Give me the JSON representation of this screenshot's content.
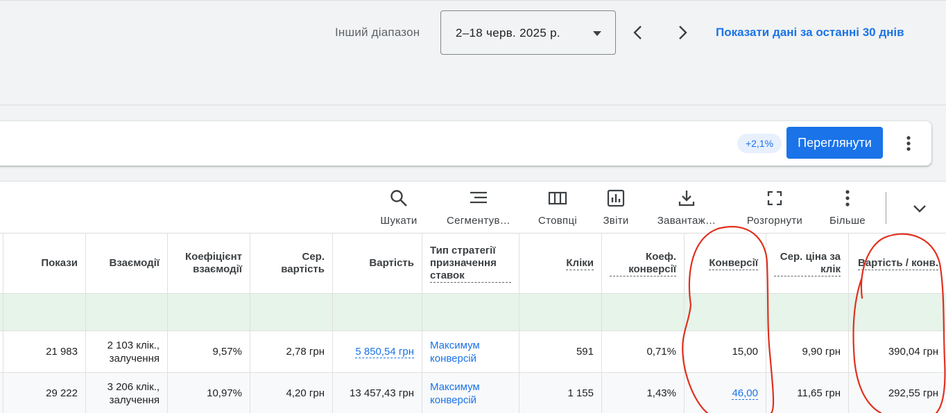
{
  "date_bar": {
    "range_label": "Інший діапазон",
    "date_value": "2–18 черв. 2025 р.",
    "last30_link": "Показати дані за останні 30 днів"
  },
  "recommendation": {
    "change_chip": "+2,1%",
    "view_button": "Переглянути"
  },
  "toolbar": {
    "items": [
      {
        "label": "Шукати",
        "icon": "search-icon"
      },
      {
        "label": "Сегментув…",
        "icon": "segment-icon"
      },
      {
        "label": "Стовпці",
        "icon": "columns-icon"
      },
      {
        "label": "Звіти",
        "icon": "reports-icon"
      },
      {
        "label": "Завантаж…",
        "icon": "download-icon"
      },
      {
        "label": "Розгорнути",
        "icon": "fullscreen-icon"
      },
      {
        "label": "Більше",
        "icon": "more-vert-icon"
      }
    ]
  },
  "table": {
    "headers": [
      "Покази",
      "Взаємодії",
      "Коефіцієнт взаємодії",
      "Сер. вартість",
      "Вартість",
      "Тип стратегії призначення ставок",
      "Кліки",
      "Коеф. конверсії",
      "Конверсії",
      "Сер. ціна за клік",
      "Вартість / конв."
    ],
    "rows": [
      {
        "impressions": "21 983",
        "interactions": "2 103 клік., залучення",
        "interaction_rate": "9,57%",
        "avg_cost": "2,78 грн",
        "cost": "5 850,54 грн",
        "bid_strategy": "Максимум конверсій",
        "clicks": "591",
        "conv_rate": "0,71%",
        "conversions": "15,00",
        "avg_cpc": "9,90 грн",
        "cost_per_conv": "390,04 грн"
      },
      {
        "impressions": "29 222",
        "interactions": "3 206 клік., залучення",
        "interaction_rate": "10,97%",
        "avg_cost": "4,20 грн",
        "cost": "13 457,43 грн",
        "bid_strategy": "Максимум конверсій",
        "clicks": "1 155",
        "conv_rate": "1,43%",
        "conversions": "46,00",
        "avg_cpc": "11,65 грн",
        "cost_per_conv": "292,55 грн"
      }
    ]
  },
  "colors": {
    "accent": "#1a73e8",
    "total_row": "#e6f4ea",
    "annotation": "#e0301e"
  }
}
